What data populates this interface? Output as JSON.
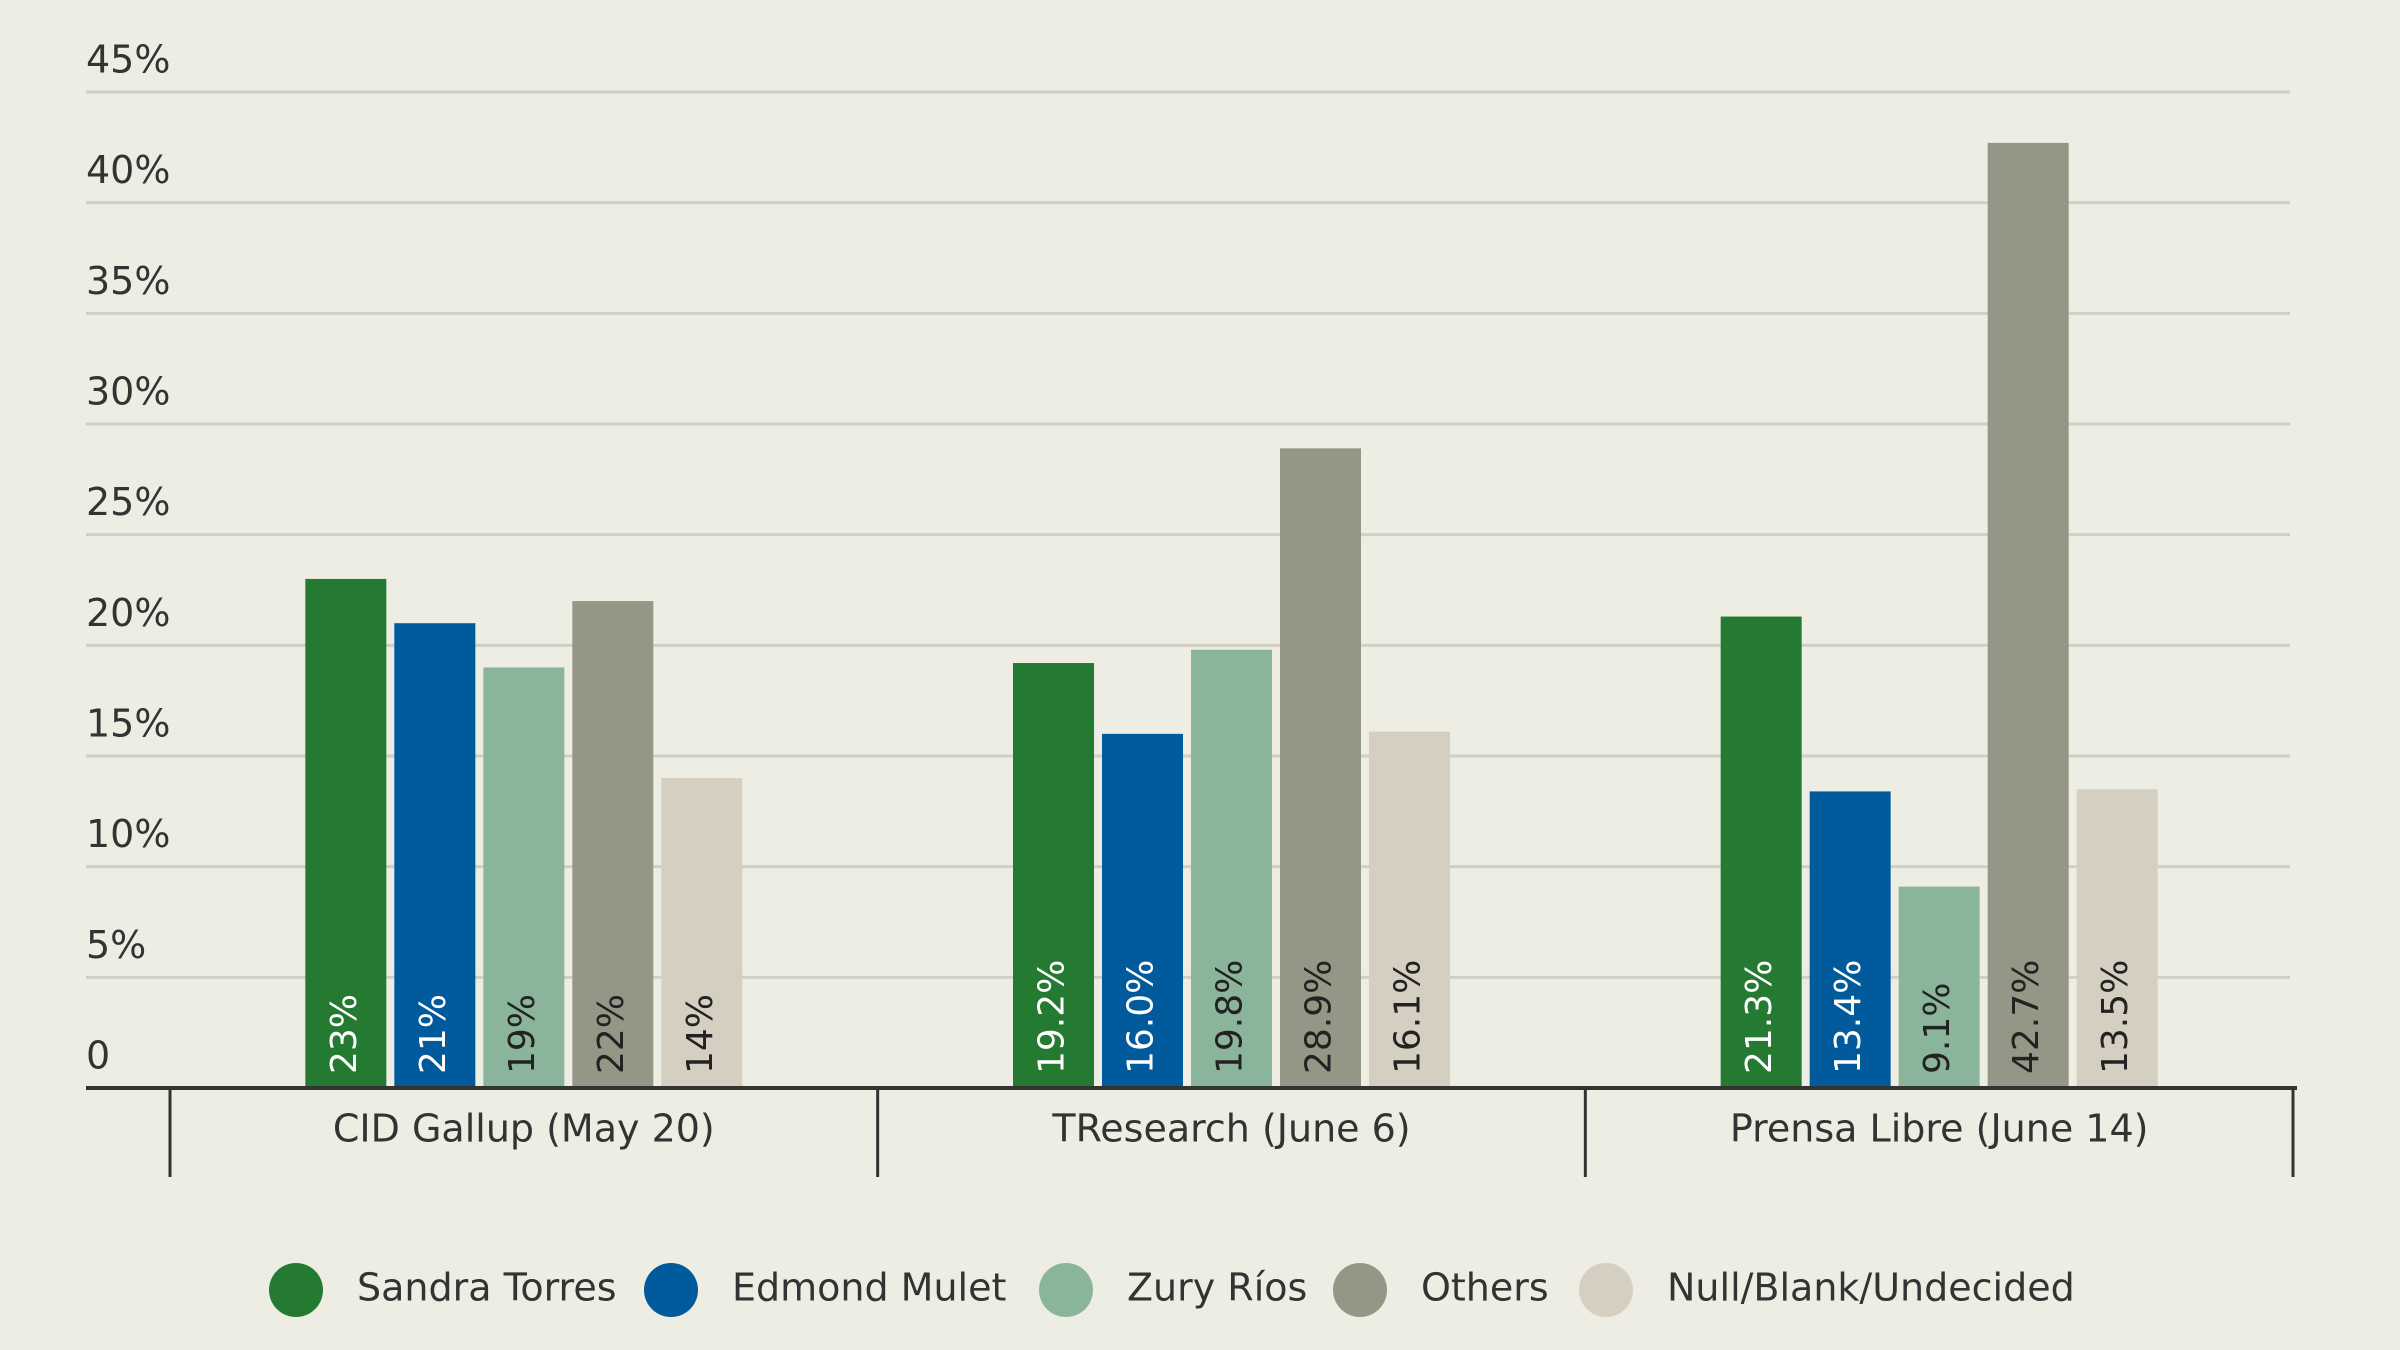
{
  "chart_data": {
    "type": "bar",
    "categories": [
      "CID Gallup (May 20)",
      "TResearch (June 6)",
      "Prensa Libre (June 14)"
    ],
    "series": [
      {
        "name": "Sandra Torres",
        "color": "#237a30",
        "values": [
          23,
          19.2,
          21.3
        ],
        "value_labels": [
          "23%",
          "19.2%",
          "21.3%"
        ]
      },
      {
        "name": "Edmond Mulet",
        "color": "#005a9c",
        "values": [
          21,
          16.0,
          13.4
        ],
        "value_labels": [
          "21%",
          "16.0%",
          "13.4%"
        ]
      },
      {
        "name": "Zury Ríos",
        "color": "#8ab59a",
        "values": [
          19,
          19.8,
          9.1
        ],
        "value_labels": [
          "19%",
          "19.8%",
          "9.1%"
        ]
      },
      {
        "name": "Others",
        "color": "#959686",
        "values": [
          22,
          28.9,
          42.7
        ],
        "value_labels": [
          "22%",
          "28.9%",
          "42.7%"
        ]
      },
      {
        "name": "Null/Blank/Undecided",
        "color": "#d5cfc2",
        "values": [
          14,
          16.1,
          13.5
        ],
        "value_labels": [
          "14%",
          "16.1%",
          "13.5%"
        ]
      }
    ],
    "ylim": [
      0,
      45
    ],
    "yticks": [
      0,
      {
        "value": 5,
        "label": "5%"
      },
      {
        "value": 10,
        "label": "10%"
      },
      {
        "value": 15,
        "label": "15%"
      },
      {
        "value": 20,
        "label": "20%"
      },
      {
        "value": 25,
        "label": "25%"
      },
      {
        "value": 30,
        "label": "30%"
      },
      {
        "value": 35,
        "label": "35%"
      },
      {
        "value": 40,
        "label": "40%"
      },
      {
        "value": 45,
        "label": "45%"
      }
    ],
    "grid": true,
    "legend": "bottom"
  }
}
